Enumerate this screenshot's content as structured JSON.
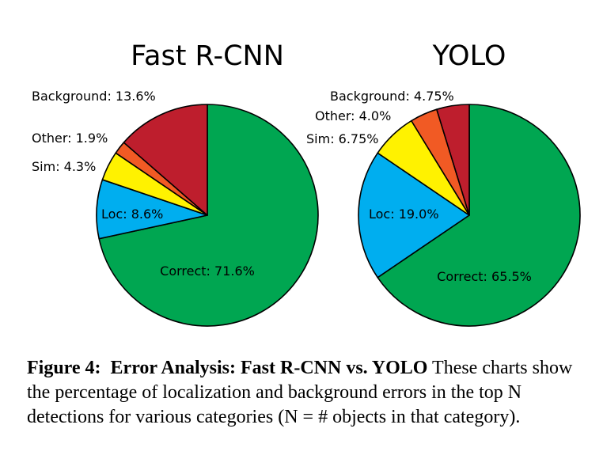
{
  "chart_data": [
    {
      "type": "pie",
      "title": "Fast R-CNN",
      "slices": [
        {
          "name": "Correct",
          "value": 71.6,
          "label": "Correct: 71.6%",
          "color": "#00A651"
        },
        {
          "name": "Loc",
          "value": 8.6,
          "label": "Loc: 8.6%",
          "color": "#00AEEF"
        },
        {
          "name": "Sim",
          "value": 4.3,
          "label": "Sim: 4.3%",
          "color": "#FFF200"
        },
        {
          "name": "Other",
          "value": 1.9,
          "label": "Other: 1.9%",
          "color": "#F15A24"
        },
        {
          "name": "Background",
          "value": 13.6,
          "label": "Background: 13.6%",
          "color": "#BE1E2D"
        }
      ]
    },
    {
      "type": "pie",
      "title": "YOLO",
      "slices": [
        {
          "name": "Correct",
          "value": 65.5,
          "label": "Correct: 65.5%",
          "color": "#00A651"
        },
        {
          "name": "Loc",
          "value": 19.0,
          "label": "Loc: 19.0%",
          "color": "#00AEEF"
        },
        {
          "name": "Sim",
          "value": 6.75,
          "label": "Sim: 6.75%",
          "color": "#FFF200"
        },
        {
          "name": "Other",
          "value": 4.0,
          "label": "Other: 4.0%",
          "color": "#F15A24"
        },
        {
          "name": "Background",
          "value": 4.75,
          "label": "Background: 4.75%",
          "color": "#BE1E2D"
        }
      ]
    }
  ],
  "caption": {
    "figure_label": "Figure 4:",
    "bold_title": "Error Analysis: Fast R-CNN vs. YOLO",
    "text": "These charts show the percentage of localization and background errors in the top N detections for various categories (N = # objects in that category)."
  }
}
